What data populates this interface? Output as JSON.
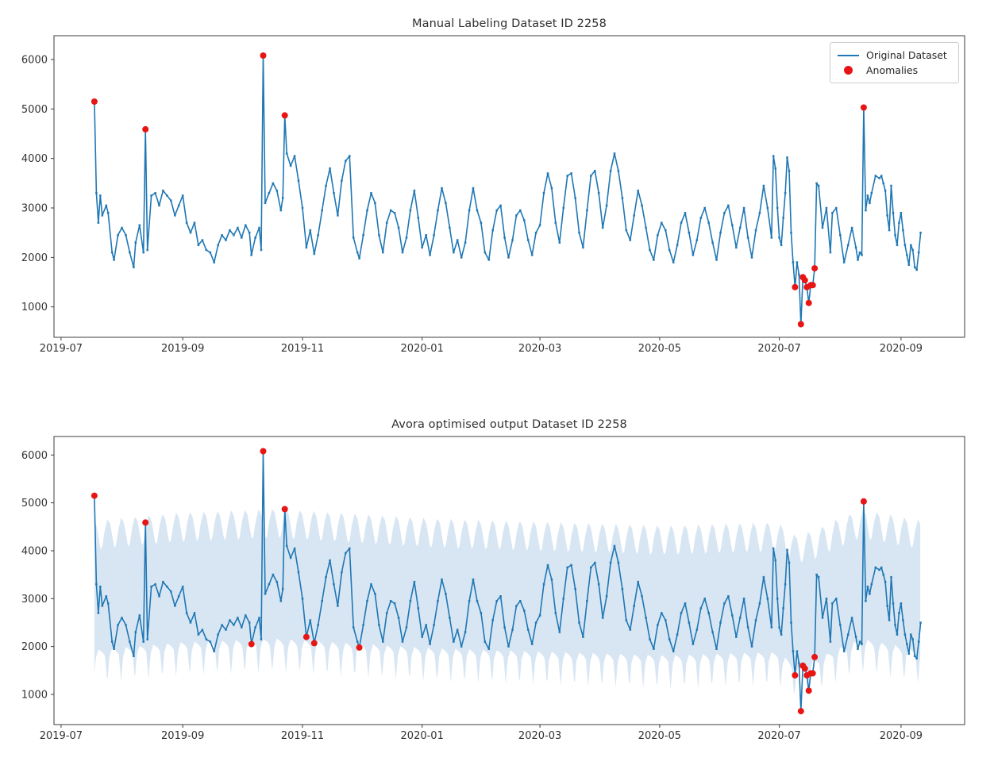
{
  "figure": {
    "background": "#ffffff"
  },
  "colors": {
    "line": "#1f77b4",
    "anomaly": "#e81515",
    "band": "#d8e6f3",
    "spine": "#3c3c3c",
    "tick_label": "#333333",
    "title": "#303030",
    "legend_border": "#cccccc"
  },
  "chart_data": {
    "type": "line",
    "x_unit": "days since 2019-07-01",
    "date_origin": "2019-07-01",
    "series_name": "Original Dataset",
    "anomaly_series_name": "Anomalies",
    "series_points": [
      [
        17,
        5150
      ],
      [
        18,
        3300
      ],
      [
        19,
        2700
      ],
      [
        20,
        3250
      ],
      [
        21,
        2850
      ],
      [
        23,
        3050
      ],
      [
        24,
        2900
      ],
      [
        26,
        2100
      ],
      [
        27,
        1950
      ],
      [
        29,
        2450
      ],
      [
        31,
        2600
      ],
      [
        33,
        2450
      ],
      [
        35,
        2100
      ],
      [
        37,
        1800
      ],
      [
        38,
        2300
      ],
      [
        40,
        2650
      ],
      [
        42,
        2100
      ],
      [
        43,
        4590
      ],
      [
        44,
        2150
      ],
      [
        46,
        3250
      ],
      [
        48,
        3300
      ],
      [
        50,
        3050
      ],
      [
        52,
        3350
      ],
      [
        54,
        3250
      ],
      [
        56,
        3150
      ],
      [
        58,
        2850
      ],
      [
        60,
        3050
      ],
      [
        62,
        3250
      ],
      [
        64,
        2700
      ],
      [
        66,
        2500
      ],
      [
        68,
        2700
      ],
      [
        70,
        2250
      ],
      [
        72,
        2350
      ],
      [
        74,
        2150
      ],
      [
        76,
        2100
      ],
      [
        78,
        1900
      ],
      [
        80,
        2250
      ],
      [
        82,
        2450
      ],
      [
        84,
        2350
      ],
      [
        86,
        2550
      ],
      [
        88,
        2450
      ],
      [
        90,
        2600
      ],
      [
        92,
        2400
      ],
      [
        94,
        2650
      ],
      [
        96,
        2500
      ],
      [
        97,
        2050
      ],
      [
        99,
        2400
      ],
      [
        101,
        2600
      ],
      [
        102,
        2150
      ],
      [
        103,
        6080
      ],
      [
        104,
        3100
      ],
      [
        106,
        3300
      ],
      [
        108,
        3500
      ],
      [
        110,
        3350
      ],
      [
        112,
        2950
      ],
      [
        113,
        3200
      ],
      [
        114,
        4870
      ],
      [
        115,
        4100
      ],
      [
        117,
        3850
      ],
      [
        119,
        4050
      ],
      [
        121,
        3550
      ],
      [
        123,
        3000
      ],
      [
        125,
        2200
      ],
      [
        127,
        2550
      ],
      [
        129,
        2070
      ],
      [
        131,
        2450
      ],
      [
        133,
        2950
      ],
      [
        135,
        3450
      ],
      [
        137,
        3800
      ],
      [
        139,
        3300
      ],
      [
        141,
        2850
      ],
      [
        143,
        3550
      ],
      [
        145,
        3950
      ],
      [
        147,
        4050
      ],
      [
        149,
        2400
      ],
      [
        151,
        2100
      ],
      [
        152,
        1980
      ],
      [
        154,
        2450
      ],
      [
        156,
        2950
      ],
      [
        158,
        3300
      ],
      [
        160,
        3100
      ],
      [
        162,
        2450
      ],
      [
        164,
        2100
      ],
      [
        166,
        2700
      ],
      [
        168,
        2950
      ],
      [
        170,
        2900
      ],
      [
        172,
        2600
      ],
      [
        174,
        2100
      ],
      [
        176,
        2400
      ],
      [
        178,
        2950
      ],
      [
        180,
        3350
      ],
      [
        182,
        2800
      ],
      [
        184,
        2200
      ],
      [
        186,
        2450
      ],
      [
        188,
        2050
      ],
      [
        190,
        2450
      ],
      [
        192,
        2950
      ],
      [
        194,
        3400
      ],
      [
        196,
        3100
      ],
      [
        198,
        2600
      ],
      [
        200,
        2100
      ],
      [
        202,
        2350
      ],
      [
        204,
        2000
      ],
      [
        206,
        2300
      ],
      [
        208,
        2950
      ],
      [
        210,
        3400
      ],
      [
        212,
        2950
      ],
      [
        214,
        2700
      ],
      [
        216,
        2100
      ],
      [
        218,
        1950
      ],
      [
        220,
        2550
      ],
      [
        222,
        2950
      ],
      [
        224,
        3050
      ],
      [
        226,
        2400
      ],
      [
        228,
        2000
      ],
      [
        230,
        2350
      ],
      [
        232,
        2850
      ],
      [
        234,
        2950
      ],
      [
        236,
        2750
      ],
      [
        238,
        2350
      ],
      [
        240,
        2050
      ],
      [
        242,
        2500
      ],
      [
        244,
        2650
      ],
      [
        246,
        3300
      ],
      [
        248,
        3700
      ],
      [
        250,
        3400
      ],
      [
        252,
        2700
      ],
      [
        254,
        2300
      ],
      [
        256,
        3000
      ],
      [
        258,
        3650
      ],
      [
        260,
        3700
      ],
      [
        262,
        3200
      ],
      [
        264,
        2500
      ],
      [
        266,
        2200
      ],
      [
        268,
        2950
      ],
      [
        270,
        3650
      ],
      [
        272,
        3750
      ],
      [
        274,
        3300
      ],
      [
        276,
        2600
      ],
      [
        278,
        3050
      ],
      [
        280,
        3750
      ],
      [
        282,
        4100
      ],
      [
        284,
        3750
      ],
      [
        286,
        3200
      ],
      [
        288,
        2550
      ],
      [
        290,
        2350
      ],
      [
        292,
        2850
      ],
      [
        294,
        3350
      ],
      [
        296,
        3050
      ],
      [
        298,
        2600
      ],
      [
        300,
        2150
      ],
      [
        302,
        1950
      ],
      [
        304,
        2450
      ],
      [
        306,
        2700
      ],
      [
        308,
        2550
      ],
      [
        310,
        2150
      ],
      [
        312,
        1900
      ],
      [
        314,
        2250
      ],
      [
        316,
        2700
      ],
      [
        318,
        2900
      ],
      [
        320,
        2500
      ],
      [
        322,
        2050
      ],
      [
        324,
        2350
      ],
      [
        326,
        2800
      ],
      [
        328,
        3000
      ],
      [
        330,
        2700
      ],
      [
        332,
        2300
      ],
      [
        334,
        1950
      ],
      [
        336,
        2500
      ],
      [
        338,
        2900
      ],
      [
        340,
        3050
      ],
      [
        342,
        2650
      ],
      [
        344,
        2200
      ],
      [
        346,
        2600
      ],
      [
        348,
        3000
      ],
      [
        350,
        2400
      ],
      [
        352,
        2000
      ],
      [
        354,
        2550
      ],
      [
        356,
        2900
      ],
      [
        358,
        3450
      ],
      [
        360,
        3000
      ],
      [
        362,
        2400
      ],
      [
        363,
        4050
      ],
      [
        364,
        3800
      ],
      [
        365,
        3000
      ],
      [
        366,
        2400
      ],
      [
        367,
        2250
      ],
      [
        368,
        2800
      ],
      [
        369,
        3300
      ],
      [
        370,
        4020
      ],
      [
        371,
        3750
      ],
      [
        372,
        2500
      ],
      [
        373,
        1900
      ],
      [
        374,
        1400
      ],
      [
        375,
        1900
      ],
      [
        376,
        1650
      ],
      [
        377,
        650
      ],
      [
        378,
        1600
      ],
      [
        379,
        1540
      ],
      [
        380,
        1400
      ],
      [
        381,
        1080
      ],
      [
        382,
        1440
      ],
      [
        383,
        1440
      ],
      [
        384,
        1780
      ],
      [
        385,
        3500
      ],
      [
        386,
        3450
      ],
      [
        388,
        2600
      ],
      [
        390,
        3000
      ],
      [
        392,
        2100
      ],
      [
        393,
        2900
      ],
      [
        395,
        3000
      ],
      [
        397,
        2450
      ],
      [
        399,
        1900
      ],
      [
        401,
        2250
      ],
      [
        403,
        2600
      ],
      [
        405,
        2200
      ],
      [
        406,
        1950
      ],
      [
        407,
        2100
      ],
      [
        408,
        2050
      ],
      [
        409,
        5030
      ],
      [
        410,
        2950
      ],
      [
        411,
        3250
      ],
      [
        412,
        3100
      ],
      [
        413,
        3300
      ],
      [
        415,
        3650
      ],
      [
        417,
        3600
      ],
      [
        418,
        3650
      ],
      [
        419,
        3500
      ],
      [
        420,
        3350
      ],
      [
        421,
        2850
      ],
      [
        422,
        2550
      ],
      [
        423,
        3450
      ],
      [
        424,
        2900
      ],
      [
        425,
        2450
      ],
      [
        426,
        2250
      ],
      [
        427,
        2700
      ],
      [
        428,
        2900
      ],
      [
        429,
        2550
      ],
      [
        430,
        2250
      ],
      [
        431,
        2050
      ],
      [
        432,
        1850
      ],
      [
        433,
        2250
      ],
      [
        434,
        2150
      ],
      [
        435,
        1800
      ],
      [
        436,
        1750
      ],
      [
        437,
        2100
      ],
      [
        438,
        2500
      ]
    ],
    "charts": [
      {
        "title": "Manual Labeling Dataset ID 2258",
        "xlim_days": [
          -3.6,
          460.4
        ],
        "ylim": [
          386,
          6481
        ],
        "xticks": [
          {
            "day": 0,
            "label": "2019-07"
          },
          {
            "day": 62,
            "label": "2019-09"
          },
          {
            "day": 123,
            "label": "2019-11"
          },
          {
            "day": 184,
            "label": "2020-01"
          },
          {
            "day": 244,
            "label": "2020-03"
          },
          {
            "day": 305,
            "label": "2020-05"
          },
          {
            "day": 366,
            "label": "2020-07"
          },
          {
            "day": 428,
            "label": "2020-09"
          }
        ],
        "yticks": [
          1000,
          2000,
          3000,
          4000,
          5000,
          6000
        ],
        "legend": {
          "items": [
            "Original Dataset",
            "Anomalies"
          ],
          "position": "upper-right"
        },
        "anomalies": [
          [
            17,
            5150
          ],
          [
            43,
            4590
          ],
          [
            103,
            6080
          ],
          [
            114,
            4870
          ],
          [
            374,
            1400
          ],
          [
            377,
            650
          ],
          [
            378,
            1600
          ],
          [
            379,
            1540
          ],
          [
            380,
            1400
          ],
          [
            381,
            1080
          ],
          [
            382,
            1440
          ],
          [
            383,
            1440
          ],
          [
            384,
            1780
          ],
          [
            409,
            5030
          ]
        ]
      },
      {
        "title": "Avora optimised output Dataset ID 2258",
        "xlim_days": [
          -3.6,
          460.4
        ],
        "ylim": [
          370,
          6386
        ],
        "xticks": [
          {
            "day": 0,
            "label": "2019-07"
          },
          {
            "day": 62,
            "label": "2019-09"
          },
          {
            "day": 123,
            "label": "2019-11"
          },
          {
            "day": 184,
            "label": "2020-01"
          },
          {
            "day": 244,
            "label": "2020-03"
          },
          {
            "day": 305,
            "label": "2020-05"
          },
          {
            "day": 366,
            "label": "2020-07"
          },
          {
            "day": 428,
            "label": "2020-09"
          }
        ],
        "yticks": [
          1000,
          2000,
          3000,
          4000,
          5000,
          6000
        ],
        "band": {
          "start_day": 17,
          "end_day": 438,
          "period_days": 7,
          "weekly_upper": [
            [
              0,
              4150
            ],
            [
              1.2,
              4480
            ],
            [
              2.6,
              4720
            ],
            [
              4.0,
              4620
            ],
            [
              5.4,
              4280
            ],
            [
              6.2,
              4100
            ],
            [
              7,
              4150
            ]
          ],
          "weekly_lower": [
            [
              0,
              1950
            ],
            [
              1.4,
              1870
            ],
            [
              2.6,
              1300
            ],
            [
              3.6,
              1820
            ],
            [
              5.0,
              2010
            ],
            [
              6.2,
              1970
            ],
            [
              7,
              1950
            ]
          ],
          "modulation": [
            [
              17,
              -80
            ],
            [
              60,
              80
            ],
            [
              110,
              160
            ],
            [
              150,
              60
            ],
            [
              190,
              -40
            ],
            [
              230,
              -90
            ],
            [
              270,
              -140
            ],
            [
              310,
              -190
            ],
            [
              345,
              -140
            ],
            [
              365,
              -120
            ],
            [
              374,
              -380
            ],
            [
              383,
              -300
            ],
            [
              395,
              -60
            ],
            [
              408,
              160
            ],
            [
              420,
              60
            ],
            [
              438,
              -80
            ]
          ]
        },
        "anomalies": [
          [
            17,
            5150
          ],
          [
            43,
            4590
          ],
          [
            97,
            2050
          ],
          [
            103,
            6080
          ],
          [
            114,
            4870
          ],
          [
            125,
            2200
          ],
          [
            129,
            2070
          ],
          [
            152,
            1980
          ],
          [
            374,
            1400
          ],
          [
            377,
            650
          ],
          [
            378,
            1600
          ],
          [
            379,
            1540
          ],
          [
            380,
            1400
          ],
          [
            381,
            1080
          ],
          [
            382,
            1440
          ],
          [
            383,
            1440
          ],
          [
            384,
            1780
          ],
          [
            409,
            5030
          ]
        ]
      }
    ]
  }
}
